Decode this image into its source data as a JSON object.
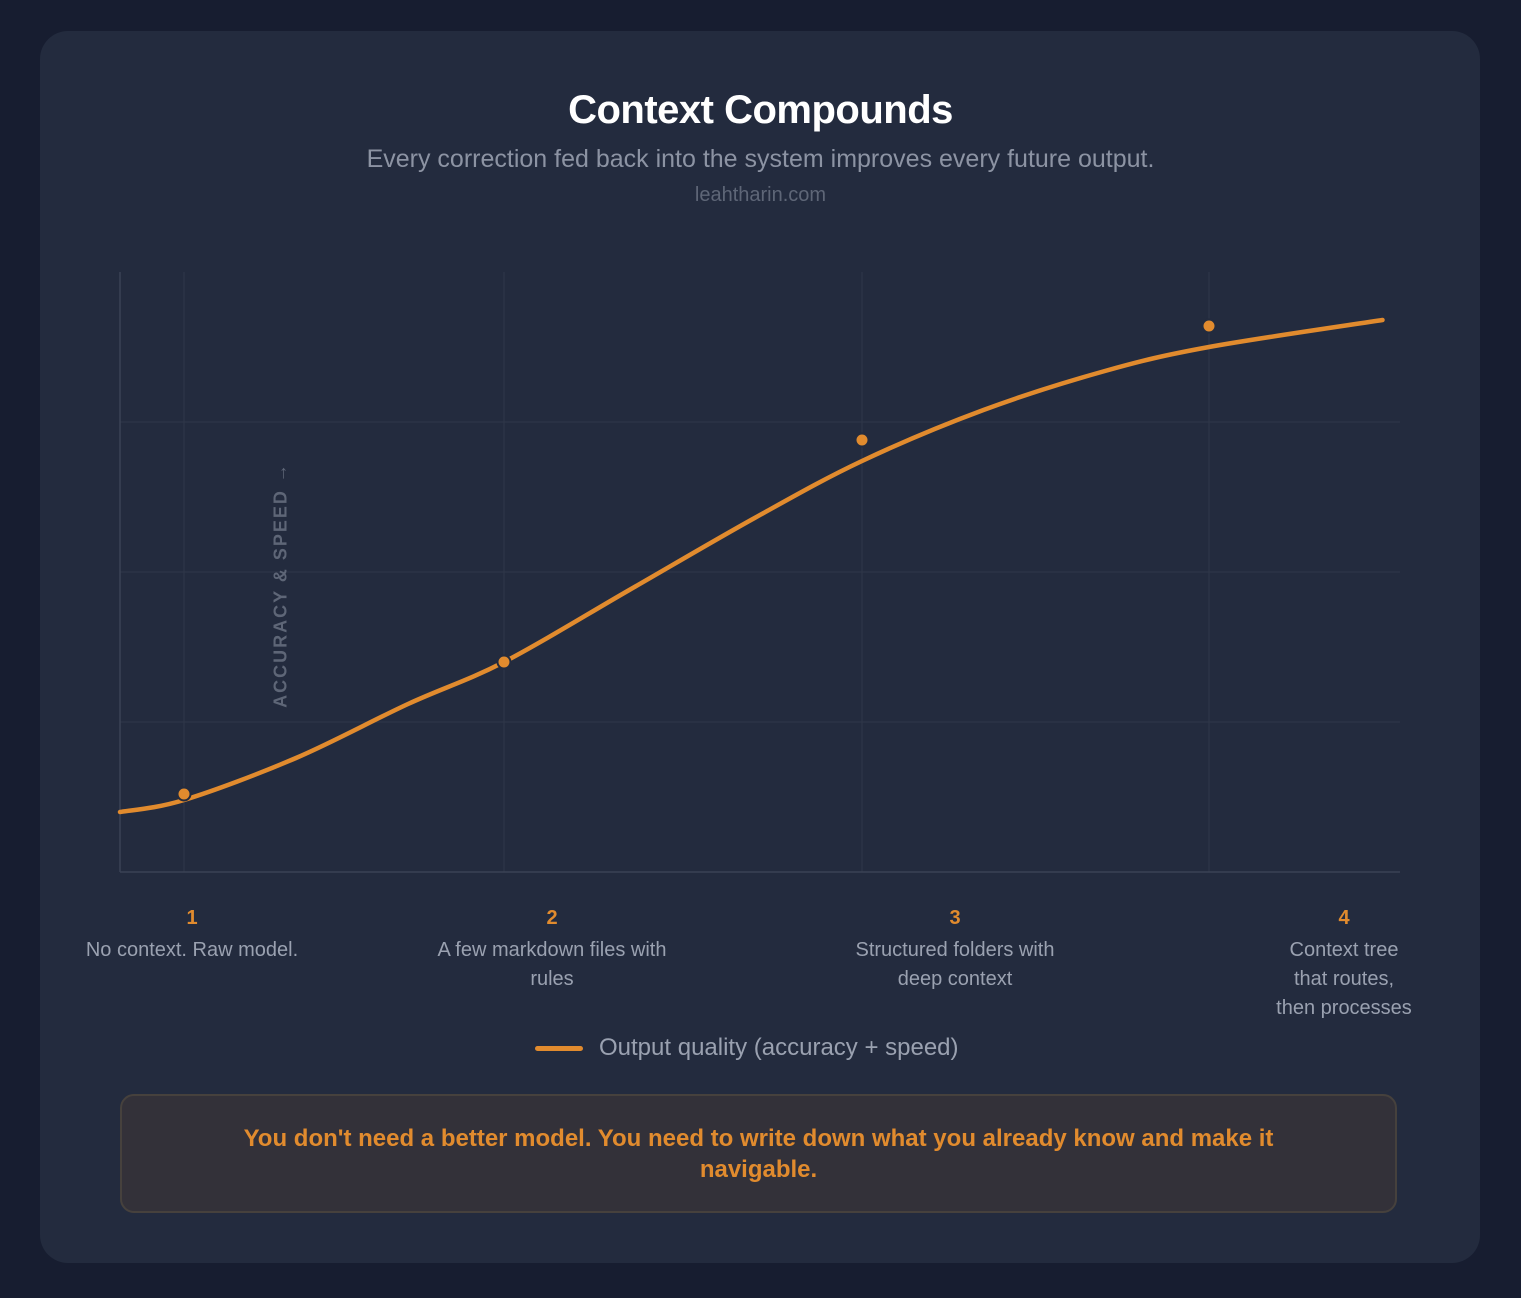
{
  "header": {
    "title": "Context Compounds",
    "subtitle": "Every correction fed back into the system improves every future output.",
    "site": "leahtharin.com"
  },
  "chart_data": {
    "type": "line",
    "title": "Context Compounds",
    "subtitle": "Every correction fed back into the system improves every future output.",
    "xlabel": "",
    "ylabel": "ACCURACY & SPEED →",
    "x_stages": [
      {
        "num": "1",
        "label": "No context. Raw model."
      },
      {
        "num": "2",
        "label": "A few markdown files with rules"
      },
      {
        "num": "3",
        "label": "Structured folders with deep context"
      },
      {
        "num": "4",
        "label": "Context tree that routes, then processes"
      }
    ],
    "xlim": [
      0.8,
      4.5
    ],
    "ylim": [
      0,
      100
    ],
    "grid": true,
    "series": [
      {
        "name": "Output quality (accuracy + speed)",
        "color": "#e18b2e",
        "curve": [
          [
            0.8,
            10
          ],
          [
            1.0,
            12
          ],
          [
            1.35,
            19
          ],
          [
            1.7,
            28
          ],
          [
            2.0,
            35
          ],
          [
            2.35,
            47
          ],
          [
            2.7,
            59
          ],
          [
            3.0,
            68.5
          ],
          [
            3.35,
            77
          ],
          [
            3.7,
            83.5
          ],
          [
            4.0,
            87.5
          ],
          [
            4.5,
            92
          ]
        ],
        "markers": [
          [
            1.0,
            13
          ],
          [
            2.0,
            35
          ],
          [
            3.0,
            72
          ],
          [
            4.0,
            91
          ]
        ]
      }
    ],
    "legend": "bottom-center"
  },
  "legend": {
    "label": "Output quality (accuracy + speed)"
  },
  "callout": {
    "text": "You don't need a better model. You need to write down what you already know and make it navigable."
  }
}
